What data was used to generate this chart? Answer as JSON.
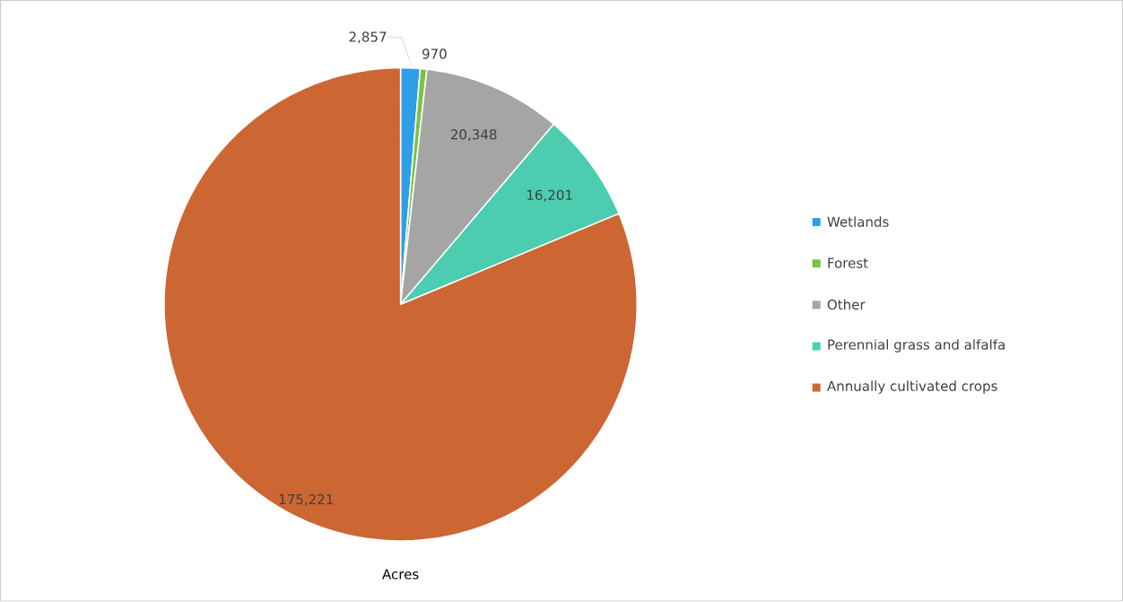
{
  "chart_data": {
    "type": "pie",
    "xlabel": "Acres",
    "categories": [
      "Wetlands",
      "Forest",
      "Other",
      "Perennial grass and alfalfa",
      "Annually cultivated crops"
    ],
    "values": [
      2857,
      970,
      20348,
      16201,
      175221
    ],
    "colors": [
      "#2E9FE6",
      "#7CC243",
      "#A5A5A5",
      "#4CCDB0",
      "#CC6633"
    ],
    "value_labels": [
      "2,857",
      "970",
      "20,348",
      "16,201",
      "175,221"
    ],
    "legend": "right"
  }
}
